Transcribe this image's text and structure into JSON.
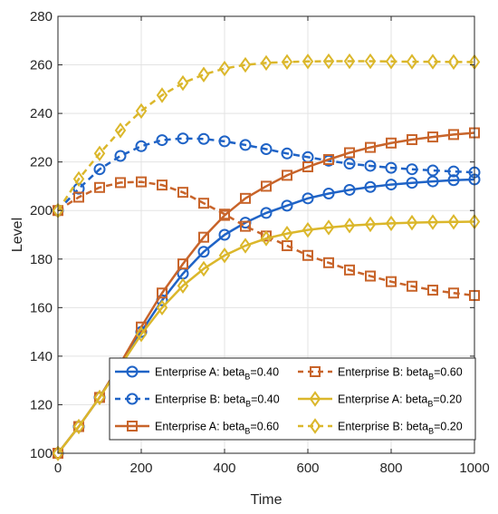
{
  "chart_data": {
    "type": "line",
    "xlabel": "Time",
    "ylabel": "Level",
    "xlim": [
      0,
      1000
    ],
    "ylim": [
      100,
      280
    ],
    "xticks": [
      0,
      200,
      400,
      600,
      800,
      1000
    ],
    "yticks": [
      100,
      120,
      140,
      160,
      180,
      200,
      220,
      240,
      260,
      280
    ],
    "grid": true,
    "legend_position": "bottom-center",
    "legend_columns": 2,
    "x": [
      0,
      50,
      100,
      150,
      200,
      250,
      300,
      350,
      400,
      450,
      500,
      550,
      600,
      650,
      700,
      750,
      800,
      850,
      900,
      950,
      1000
    ],
    "series": [
      {
        "name_main": "Enterprise A: beta",
        "name_sub": "B",
        "name_tail": "=0.40",
        "color": "#1f63c6",
        "dash": "solid",
        "marker": "circle",
        "values": [
          100,
          111,
          123,
          137,
          150,
          163,
          174,
          183,
          190,
          195,
          199,
          202,
          205,
          207,
          208.5,
          209.7,
          210.7,
          211.4,
          212,
          212.5,
          212.8
        ]
      },
      {
        "name_main": "Enterprise B: beta",
        "name_sub": "B",
        "name_tail": "=0.40",
        "color": "#1f63c6",
        "dash": "dashed",
        "marker": "circle",
        "values": [
          200,
          209,
          217,
          222.5,
          226.5,
          229,
          229.7,
          229.5,
          228.5,
          227,
          225.3,
          223.5,
          222,
          220.5,
          219.3,
          218.4,
          217.6,
          217,
          216.5,
          216.1,
          215.7
        ]
      },
      {
        "name_main": "Enterprise A: beta",
        "name_sub": "B",
        "name_tail": "=0.60",
        "color": "#c8642a",
        "dash": "solid",
        "marker": "square",
        "values": [
          100,
          111,
          123,
          137,
          152,
          166,
          178,
          189,
          198,
          205,
          210,
          214.5,
          218,
          221,
          223.8,
          226,
          227.8,
          229.2,
          230.3,
          231.3,
          232
        ]
      },
      {
        "name_main": "Enterprise B: beta",
        "name_sub": "B",
        "name_tail": "=0.60",
        "color": "#c8642a",
        "dash": "dashed",
        "marker": "square",
        "values": [
          200,
          205.5,
          209.5,
          211.5,
          211.8,
          210.5,
          207.5,
          203,
          198.5,
          193.5,
          189.5,
          185.5,
          181.5,
          178.5,
          175.5,
          173,
          170.7,
          168.8,
          167.2,
          166,
          165
        ]
      },
      {
        "name_main": "Enterprise A: beta",
        "name_sub": "B",
        "name_tail": "=0.20",
        "color": "#dbb72b",
        "dash": "solid",
        "marker": "diamond",
        "values": [
          100,
          111,
          123,
          136,
          149,
          160,
          169,
          176,
          181.5,
          185.5,
          188.5,
          190.5,
          192,
          193,
          193.8,
          194.3,
          194.7,
          195,
          195.2,
          195.3,
          195.4
        ]
      },
      {
        "name_main": "Enterprise B: beta",
        "name_sub": "B",
        "name_tail": "=0.20",
        "color": "#dbb72b",
        "dash": "dashed",
        "marker": "diamond",
        "values": [
          200,
          213,
          223.5,
          233,
          241,
          247.5,
          252.5,
          256,
          258.5,
          260,
          260.8,
          261.2,
          261.4,
          261.5,
          261.5,
          261.5,
          261.4,
          261.3,
          261.3,
          261.2,
          261.2
        ]
      }
    ],
    "legend_order": [
      0,
      3,
      1,
      4,
      2,
      5
    ]
  }
}
